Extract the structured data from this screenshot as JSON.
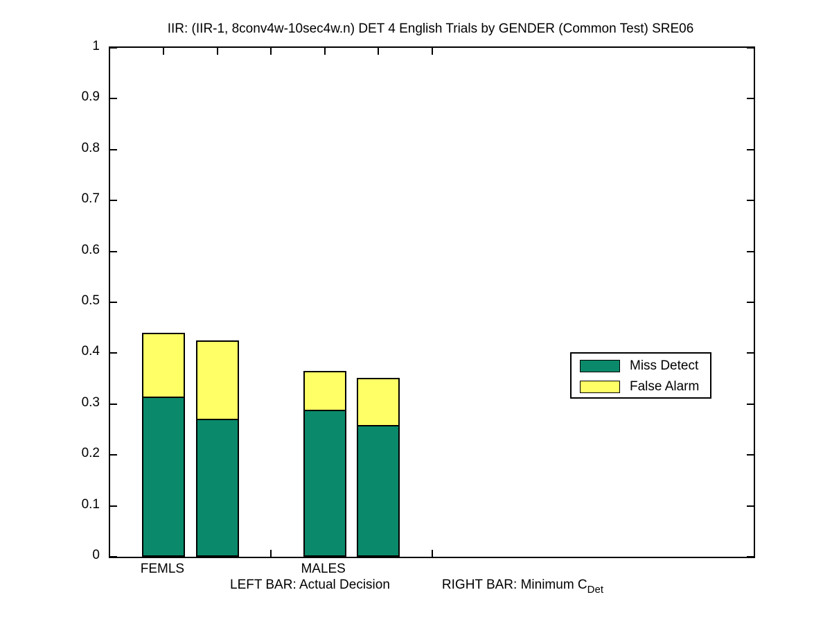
{
  "chart_data": {
    "type": "bar",
    "stacked": true,
    "title": "IIR: (IIR-1, 8conv4w-10sec4w.n) DET 4 English Trials by GENDER (Common Test) SRE06",
    "categories": [
      "FEMLS",
      "MALES"
    ],
    "bars": [
      {
        "group": "FEMLS",
        "bar_role": "Actual Decision",
        "x": 1,
        "miss_detect": 0.315,
        "false_alarm": 0.125,
        "total": 0.44
      },
      {
        "group": "FEMLS",
        "bar_role": "Minimum CDet",
        "x": 2,
        "miss_detect": 0.271,
        "false_alarm": 0.154,
        "total": 0.425
      },
      {
        "group": "MALES",
        "bar_role": "Actual Decision",
        "x": 4,
        "miss_detect": 0.289,
        "false_alarm": 0.076,
        "total": 0.365
      },
      {
        "group": "MALES",
        "bar_role": "Minimum CDet",
        "x": 5,
        "miss_detect": 0.259,
        "false_alarm": 0.093,
        "total": 0.352
      }
    ],
    "series": [
      {
        "name": "Miss Detect",
        "color": "#0A8A6A",
        "values": [
          0.315,
          0.271,
          0.289,
          0.259
        ]
      },
      {
        "name": "False Alarm",
        "color": "#FFFF66",
        "values": [
          0.125,
          0.154,
          0.076,
          0.093
        ]
      }
    ],
    "bar_width_units": 0.8,
    "xlim": [
      0,
      12
    ],
    "ylim": [
      0,
      1
    ],
    "x_ticks": [
      1,
      2,
      3,
      4,
      5,
      6
    ],
    "x_tick_labels": [
      {
        "x": 1,
        "label": "FEMLS"
      },
      {
        "x": 4,
        "label": "MALES"
      }
    ],
    "y_ticks": [
      {
        "value": 0.0,
        "label": "0"
      },
      {
        "value": 0.1,
        "label": "0.1"
      },
      {
        "value": 0.2,
        "label": "0.2"
      },
      {
        "value": 0.3,
        "label": "0.3"
      },
      {
        "value": 0.4,
        "label": "0.4"
      },
      {
        "value": 0.5,
        "label": "0.5"
      },
      {
        "value": 0.6,
        "label": "0.6"
      },
      {
        "value": 0.7,
        "label": "0.7"
      },
      {
        "value": 0.8,
        "label": "0.8"
      },
      {
        "value": 0.9,
        "label": "0.9"
      },
      {
        "value": 1.0,
        "label": "1"
      }
    ],
    "xlabel": {
      "left": "LEFT BAR: Actual Decision",
      "right": "RIGHT BAR: Minimum C",
      "right_subscript": "Det"
    },
    "legend": {
      "entries": [
        {
          "label": "Miss Detect",
          "color": "#0A8A6A"
        },
        {
          "label": "False Alarm",
          "color": "#FFFF66"
        }
      ]
    },
    "axis_color": "#000000",
    "grid": false
  }
}
